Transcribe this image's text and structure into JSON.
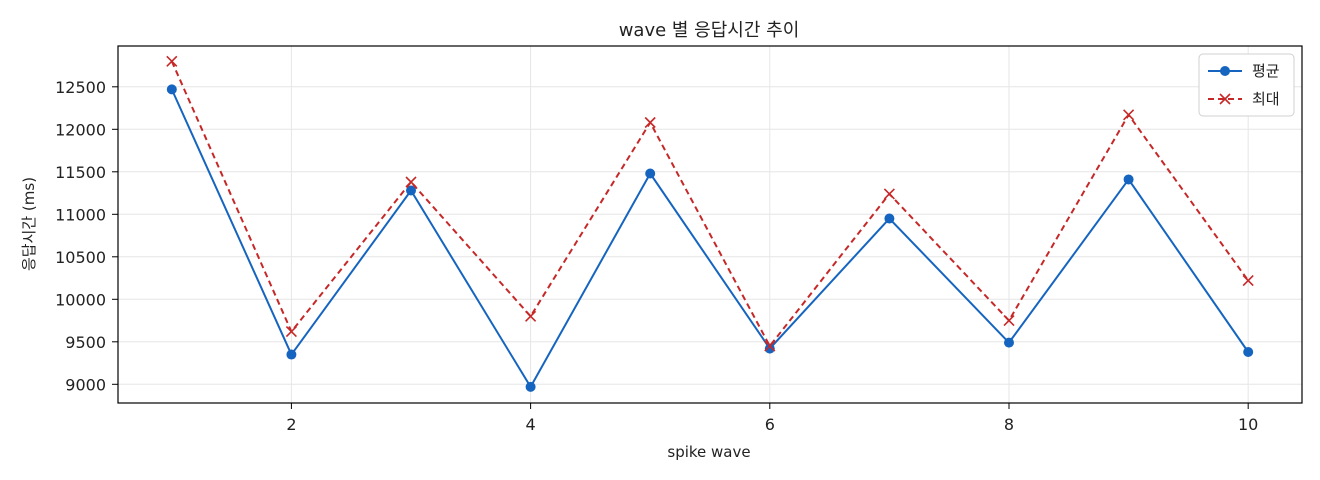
{
  "chart_data": {
    "type": "line",
    "title": "wave 별 응답시간 추이",
    "xlabel": "spike wave",
    "ylabel": "응답시간 (ms)",
    "x": [
      1,
      2,
      3,
      4,
      5,
      6,
      7,
      8,
      9,
      10
    ],
    "xticks": [
      2,
      4,
      6,
      8,
      10
    ],
    "yticks": [
      9000,
      9500,
      10000,
      10500,
      11000,
      11500,
      12000,
      12500
    ],
    "xlim": [
      0.55,
      10.45
    ],
    "ylim": [
      8780,
      12980
    ],
    "grid": true,
    "legend_position": "top-right",
    "series": [
      {
        "name": "평균",
        "color": "#1565c0",
        "marker": "circle",
        "line_style": "solid",
        "values": [
          12470,
          9350,
          11280,
          8970,
          11480,
          9420,
          10950,
          9490,
          11410,
          9380
        ]
      },
      {
        "name": "최대",
        "color": "#c62828",
        "marker": "x",
        "line_style": "dashed",
        "values": [
          12800,
          9620,
          11380,
          9800,
          12080,
          9450,
          11240,
          9750,
          12170,
          10220
        ]
      }
    ]
  }
}
